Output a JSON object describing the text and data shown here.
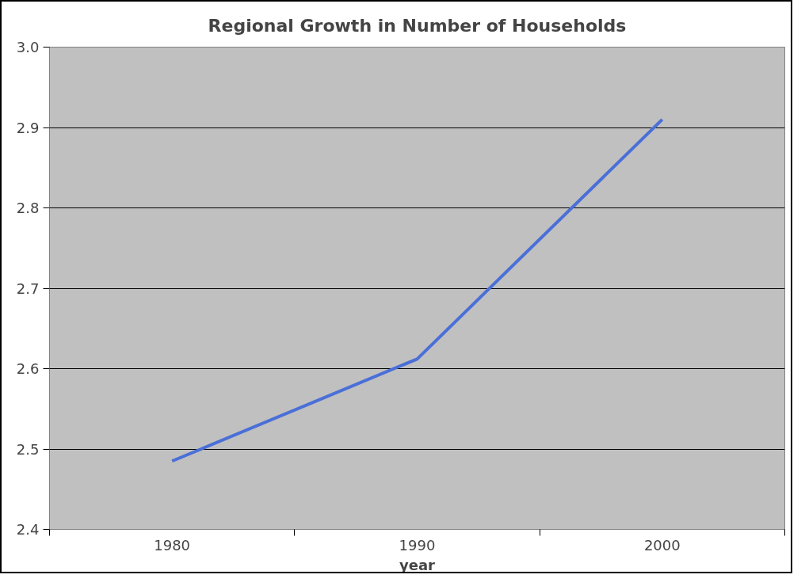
{
  "chart_data": {
    "type": "line",
    "title": "Regional Growth in Number of Households",
    "xlabel": "year",
    "categories": [
      "1980",
      "1990",
      "2000"
    ],
    "series": [
      {
        "color": "#4a6fd8",
        "values": [
          2.485,
          2.612,
          2.91
        ]
      }
    ],
    "ylim": [
      2.4,
      3.0
    ],
    "yticks": [
      {
        "value": 2.4,
        "label": "2.4"
      },
      {
        "value": 2.5,
        "label": "2.5"
      },
      {
        "value": 2.6,
        "label": "2.6"
      },
      {
        "value": 2.7,
        "label": "2.7"
      },
      {
        "value": 2.8,
        "label": "2.8"
      },
      {
        "value": 2.9,
        "label": "2.9"
      },
      {
        "value": 3.0,
        "label": "3.0"
      }
    ],
    "grid": "y",
    "marker": "none",
    "line_style": "solid"
  }
}
